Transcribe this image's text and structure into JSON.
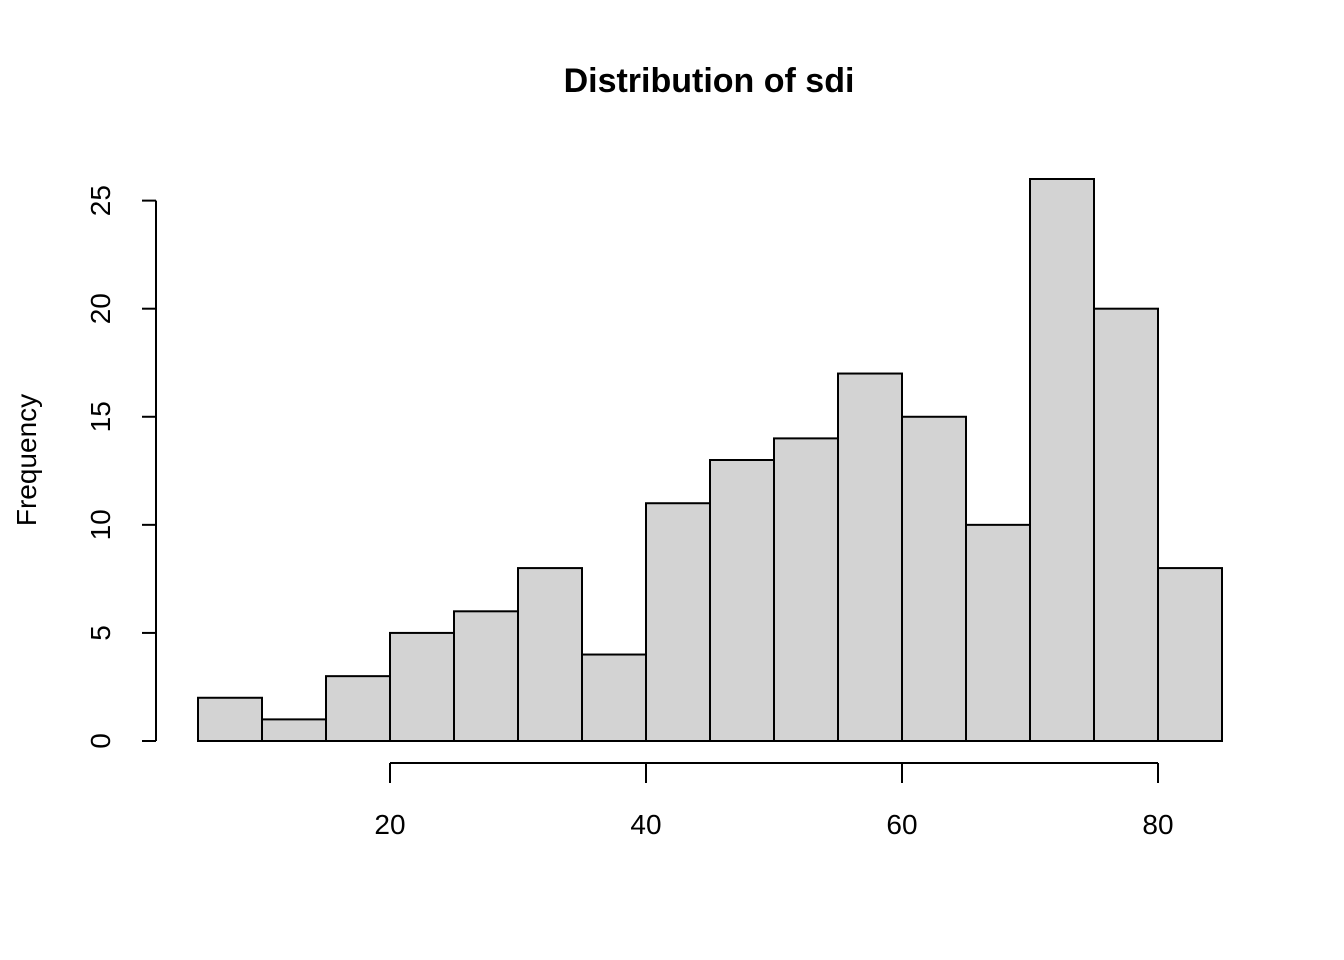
{
  "chart_data": {
    "type": "bar",
    "title": "Distribution of sdi",
    "xlabel": "",
    "ylabel": "Frequency",
    "bin_edges": [
      5,
      10,
      15,
      20,
      25,
      30,
      35,
      40,
      45,
      50,
      55,
      60,
      65,
      70,
      75,
      80,
      85
    ],
    "values": [
      2,
      1,
      3,
      5,
      6,
      8,
      4,
      11,
      13,
      14,
      17,
      15,
      10,
      26,
      20,
      8
    ],
    "x_ticks": [
      20,
      40,
      60,
      80
    ],
    "y_ticks": [
      0,
      5,
      10,
      15,
      20,
      25
    ],
    "xlim": [
      5,
      85
    ],
    "ylim": [
      0,
      26
    ],
    "bar_color": "#d3d3d3",
    "grid": false,
    "legend": "none"
  }
}
